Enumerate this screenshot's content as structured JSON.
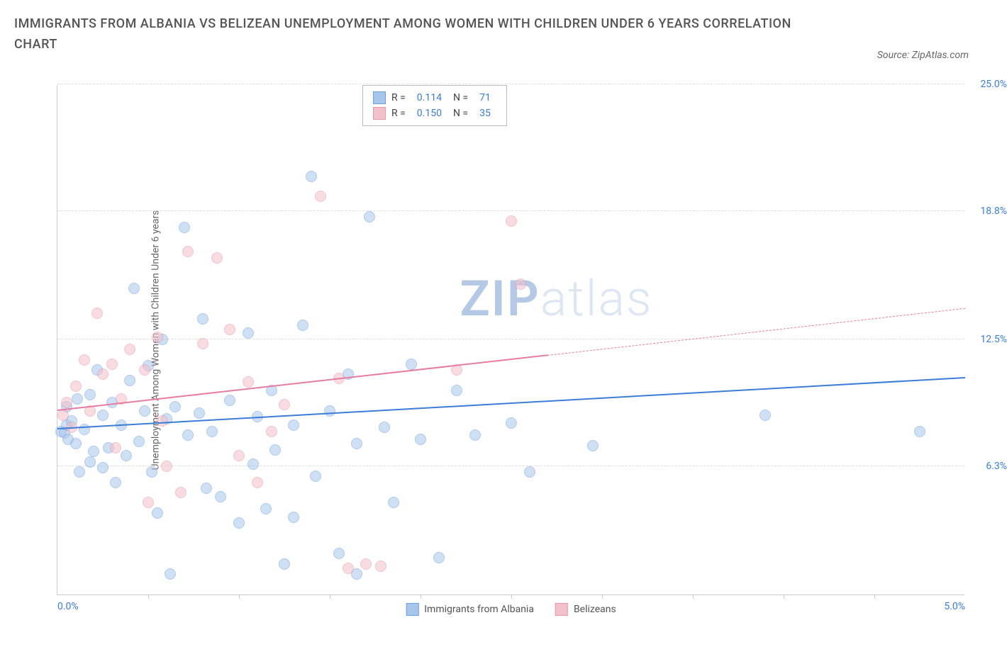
{
  "title": "IMMIGRANTS FROM ALBANIA VS BELIZEAN UNEMPLOYMENT AMONG WOMEN WITH CHILDREN UNDER 6 YEARS CORRELATION CHART",
  "source_label": "Source: ZipAtlas.com",
  "y_axis_label": "Unemployment Among Women with Children Under 6 years",
  "watermark_bold": "ZIP",
  "watermark_light": "atlas",
  "watermark_bold_color": "#b5c9e6",
  "watermark_light_color": "#dde6f2",
  "chart": {
    "type": "scatter",
    "xlim": [
      0,
      5
    ],
    "ylim": [
      0,
      25
    ],
    "x_ticks": [
      0,
      5
    ],
    "x_tick_labels": [
      "0.0%",
      "5.0%"
    ],
    "x_minor_ticks": [
      0.5,
      1.0,
      1.5,
      2.0,
      2.5,
      3.0,
      3.5,
      4.0,
      4.5
    ],
    "y_ticks": [
      6.3,
      12.5,
      18.8,
      25.0
    ],
    "y_tick_labels": [
      "6.3%",
      "12.5%",
      "18.8%",
      "25.0%"
    ],
    "grid_color": "#dddddd",
    "background_color": "#ffffff",
    "axis_color": "#cccccc",
    "tick_label_color": "#3b7dd8",
    "label_fontsize": 14,
    "title_fontsize": 18,
    "point_radius": 8,
    "point_opacity": 0.55,
    "series": [
      {
        "name": "Immigrants from Albania",
        "color_fill": "#a8c6ec",
        "color_stroke": "#6ea0dd",
        "trend_color": "#3b7dd8",
        "trend_width": 2,
        "R": "0.114",
        "N": "71",
        "trend": {
          "x0": 0,
          "y0": 8.1,
          "x1": 5,
          "y1": 10.6,
          "solid_until_x": 5.0
        },
        "points": [
          [
            0.02,
            8.0
          ],
          [
            0.04,
            7.9
          ],
          [
            0.05,
            8.3
          ],
          [
            0.06,
            7.6
          ],
          [
            0.08,
            8.5
          ],
          [
            0.05,
            9.2
          ],
          [
            0.1,
            7.4
          ],
          [
            0.11,
            9.6
          ],
          [
            0.12,
            6.0
          ],
          [
            0.15,
            8.1
          ],
          [
            0.18,
            6.5
          ],
          [
            0.18,
            9.8
          ],
          [
            0.2,
            7.0
          ],
          [
            0.22,
            11.0
          ],
          [
            0.25,
            6.2
          ],
          [
            0.25,
            8.8
          ],
          [
            0.28,
            7.2
          ],
          [
            0.3,
            9.4
          ],
          [
            0.32,
            5.5
          ],
          [
            0.35,
            8.3
          ],
          [
            0.38,
            6.8
          ],
          [
            0.4,
            10.5
          ],
          [
            0.42,
            15.0
          ],
          [
            0.45,
            7.5
          ],
          [
            0.48,
            9.0
          ],
          [
            0.5,
            11.2
          ],
          [
            0.52,
            6.0
          ],
          [
            0.55,
            4.0
          ],
          [
            0.58,
            12.5
          ],
          [
            0.6,
            8.6
          ],
          [
            0.62,
            1.0
          ],
          [
            0.65,
            9.2
          ],
          [
            0.7,
            18.0
          ],
          [
            0.72,
            7.8
          ],
          [
            0.78,
            8.9
          ],
          [
            0.8,
            13.5
          ],
          [
            0.82,
            5.2
          ],
          [
            0.85,
            8.0
          ],
          [
            0.9,
            4.8
          ],
          [
            0.95,
            9.5
          ],
          [
            1.0,
            3.5
          ],
          [
            1.05,
            12.8
          ],
          [
            1.08,
            6.4
          ],
          [
            1.1,
            8.7
          ],
          [
            1.15,
            4.2
          ],
          [
            1.18,
            10.0
          ],
          [
            1.2,
            7.1
          ],
          [
            1.25,
            1.5
          ],
          [
            1.3,
            8.3
          ],
          [
            1.35,
            13.2
          ],
          [
            1.4,
            20.5
          ],
          [
            1.42,
            5.8
          ],
          [
            1.5,
            9.0
          ],
          [
            1.55,
            2.0
          ],
          [
            1.6,
            10.8
          ],
          [
            1.65,
            7.4
          ],
          [
            1.72,
            18.5
          ],
          [
            1.8,
            8.2
          ],
          [
            1.85,
            4.5
          ],
          [
            1.95,
            11.3
          ],
          [
            2.0,
            7.6
          ],
          [
            2.1,
            1.8
          ],
          [
            2.2,
            10.0
          ],
          [
            2.3,
            7.8
          ],
          [
            2.5,
            8.4
          ],
          [
            2.6,
            6.0
          ],
          [
            2.95,
            7.3
          ],
          [
            3.9,
            8.8
          ],
          [
            4.75,
            8.0
          ],
          [
            1.65,
            1.0
          ],
          [
            1.3,
            3.8
          ]
        ]
      },
      {
        "name": "Belizeans",
        "color_fill": "#f3c1cb",
        "color_stroke": "#e994a8",
        "trend_color": "#e87ca0",
        "trend_width": 1.5,
        "R": "0.150",
        "N": "35",
        "trend": {
          "x0": 0,
          "y0": 9.0,
          "x1": 5,
          "y1": 14.0,
          "solid_until_x": 2.7
        },
        "points": [
          [
            0.03,
            8.8
          ],
          [
            0.05,
            9.4
          ],
          [
            0.08,
            8.2
          ],
          [
            0.1,
            10.2
          ],
          [
            0.15,
            11.5
          ],
          [
            0.18,
            9.0
          ],
          [
            0.22,
            13.8
          ],
          [
            0.25,
            10.8
          ],
          [
            0.3,
            11.3
          ],
          [
            0.32,
            7.2
          ],
          [
            0.35,
            9.6
          ],
          [
            0.4,
            12.0
          ],
          [
            0.48,
            11.0
          ],
          [
            0.5,
            4.5
          ],
          [
            0.55,
            12.6
          ],
          [
            0.58,
            8.5
          ],
          [
            0.6,
            6.3
          ],
          [
            0.68,
            5.0
          ],
          [
            0.72,
            16.8
          ],
          [
            0.8,
            12.3
          ],
          [
            0.88,
            16.5
          ],
          [
            0.95,
            13.0
          ],
          [
            1.0,
            6.8
          ],
          [
            1.05,
            10.4
          ],
          [
            1.1,
            5.5
          ],
          [
            1.18,
            8.0
          ],
          [
            1.25,
            9.3
          ],
          [
            1.45,
            19.5
          ],
          [
            1.55,
            10.6
          ],
          [
            1.6,
            1.3
          ],
          [
            1.7,
            1.5
          ],
          [
            1.78,
            1.4
          ],
          [
            2.2,
            11.0
          ],
          [
            2.5,
            18.3
          ],
          [
            2.55,
            15.2
          ]
        ]
      }
    ]
  },
  "legend": {
    "R_label": "R =",
    "N_label": "N ="
  }
}
